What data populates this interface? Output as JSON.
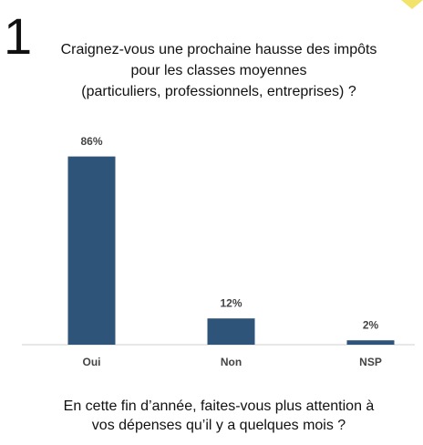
{
  "chart_data": {
    "type": "bar",
    "number": "1",
    "title": [
      "Craignez-vous une prochaine hausse des impôts",
      "pour les classes moyennes",
      "(particuliers, professionnels, entreprises) ?"
    ],
    "categories": [
      "Oui",
      "Non",
      "NSP"
    ],
    "values": [
      86,
      12,
      2
    ],
    "value_labels": [
      "86%",
      "12%",
      "2%"
    ],
    "color": "#2e5579",
    "footnote": [
      "En cette fin d’année, faites-vous plus attention à",
      "vos dépenses qu’il y a quelques mois ?"
    ]
  }
}
